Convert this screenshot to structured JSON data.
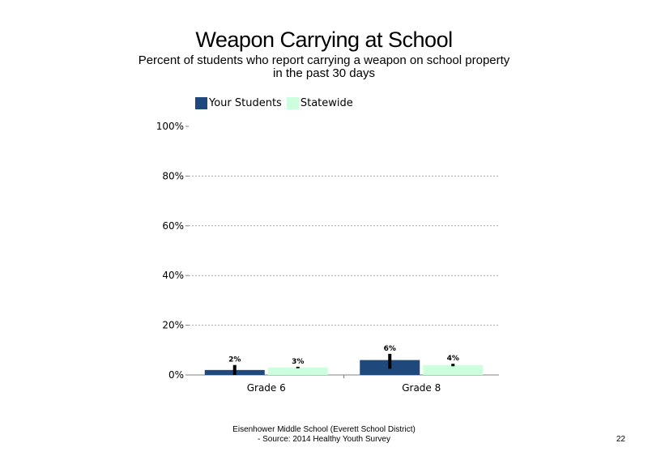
{
  "chart_data": {
    "type": "bar",
    "title": "Weapon Carrying at School",
    "subtitle": "Percent of students  who report carrying a weapon  on school property in the past 30 days",
    "categories": [
      "Grade 6",
      "Grade 8"
    ],
    "series": [
      {
        "name": "Your Students",
        "values": [
          2,
          6
        ],
        "labels": [
          "2%",
          "6%"
        ],
        "error": [
          [
            0,
            4
          ],
          [
            2.5,
            8.5
          ]
        ],
        "color": "#1F497D"
      },
      {
        "name": "Statewide",
        "values": [
          3,
          4
        ],
        "labels": [
          "3%",
          "4%"
        ],
        "error": [
          [
            2.7,
            3.3
          ],
          [
            3.5,
            4.5
          ]
        ],
        "color": "#CCFFDD"
      }
    ],
    "ylim": [
      0,
      100
    ],
    "yticks": [
      0,
      20,
      40,
      60,
      80,
      100
    ],
    "ytick_labels": [
      "0%",
      "20%",
      "40%",
      "60%",
      "80%",
      "100%"
    ],
    "grid": true,
    "legend": "top-left"
  },
  "footer": {
    "line1": "Eisenhower Middle School (Everett School District)",
    "line2": "- Source: 2014 Healthy  Youth Survey"
  },
  "page_number": "22"
}
